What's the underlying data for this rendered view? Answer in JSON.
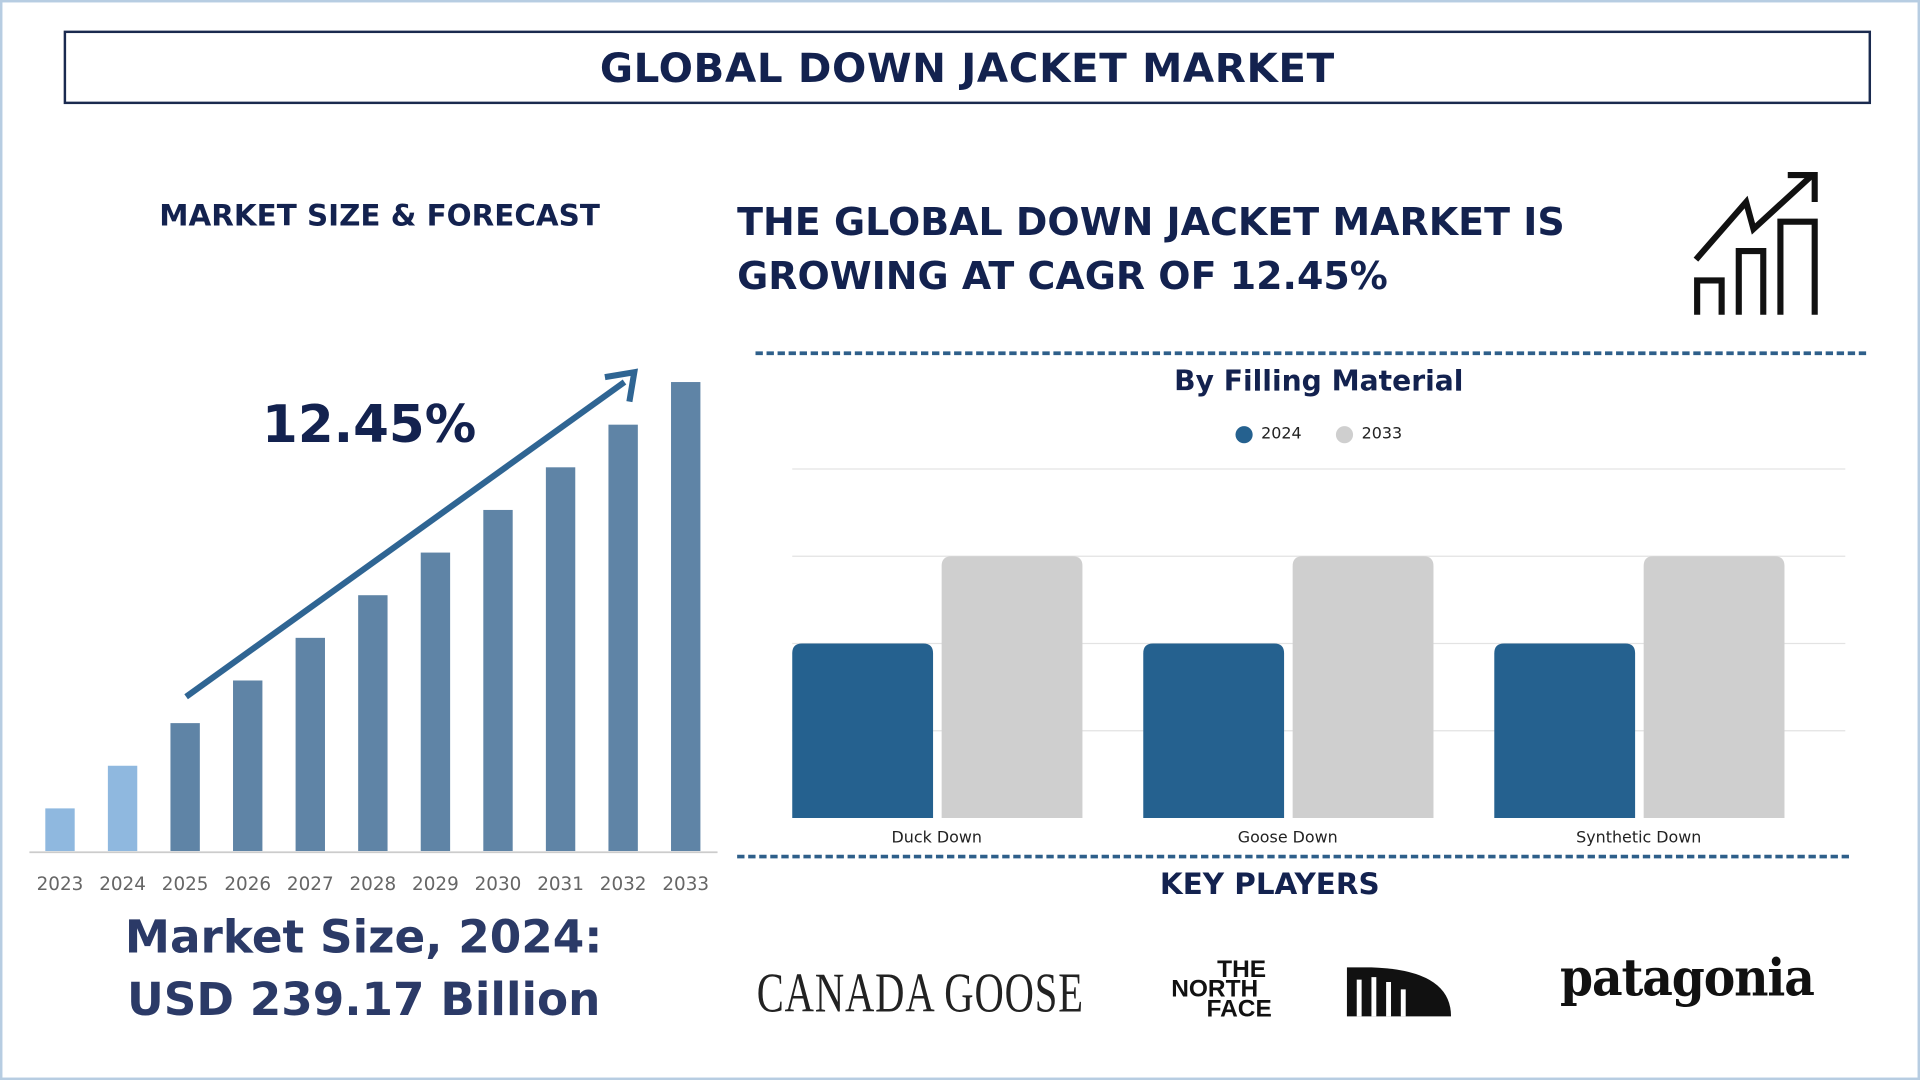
{
  "title": "GLOBAL DOWN JACKET MARKET",
  "left_panel": {
    "heading": "MARKET SIZE & FORECAST",
    "cagr_label": "12.45%",
    "market_size_line1": "Market Size, 2024:",
    "market_size_line2": "USD 239.17 Billion"
  },
  "headline": {
    "line1": "THE GLOBAL DOWN JACKET MARKET IS",
    "line2": "GROWING AT CAGR OF 12.45%",
    "icon": "growth-chart-icon"
  },
  "key_players": {
    "heading": "KEY PLAYERS",
    "logos": [
      "CANADA GOOSE",
      "THE NORTH FACE",
      "patagonia"
    ]
  },
  "colors": {
    "navy": "#13224f",
    "forecast_bar": "#5f84a6",
    "historic_bar": "#8fb8df",
    "series_2024": "#25618f",
    "series_2033": "#cfcfcf",
    "dash": "#2e5f8a"
  },
  "chart_data": [
    {
      "type": "bar",
      "title": "",
      "categories": [
        "2023",
        "2024",
        "2025",
        "2026",
        "2027",
        "2028",
        "2029",
        "2030",
        "2031",
        "2032",
        "2033"
      ],
      "values": [
        1,
        2,
        3,
        4,
        5,
        6,
        7,
        8,
        9,
        10,
        11
      ],
      "note_values_relative": true,
      "highlighted": [
        "2023",
        "2024"
      ],
      "trend_arrow": true,
      "grid": false
    },
    {
      "type": "bar",
      "title": "By Filling Material",
      "categories": [
        "Duck Down",
        "Goose Down",
        "Synthetic Down"
      ],
      "series": [
        {
          "name": "2024",
          "values": [
            2,
            2,
            2
          ],
          "color": "#25618f"
        },
        {
          "name": "2033",
          "values": [
            3,
            3,
            3
          ],
          "color": "#cfcfcf"
        }
      ],
      "ylim": [
        0,
        4
      ],
      "grid": true,
      "legend": "top-center"
    }
  ]
}
